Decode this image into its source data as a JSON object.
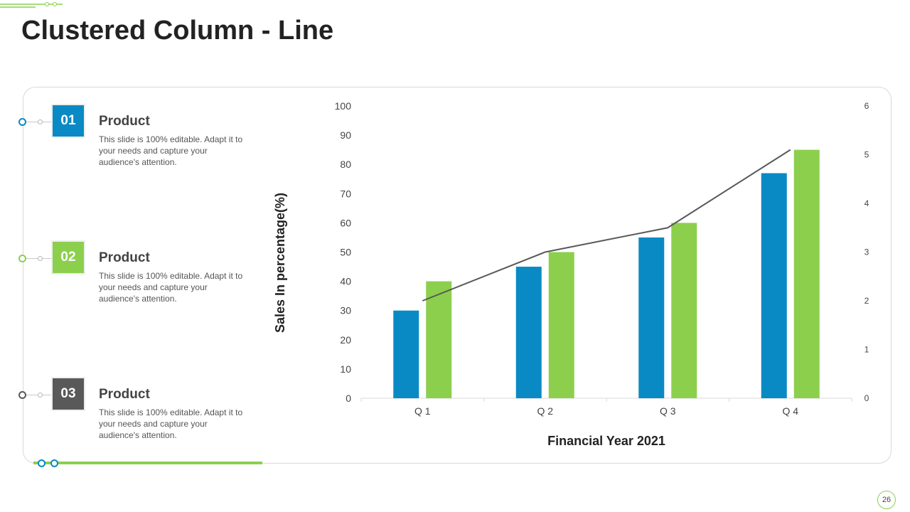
{
  "title": "Clustered Column - Line",
  "page_number": "26",
  "colors": {
    "blue": "#0a8ac4",
    "green": "#8ccf4d",
    "gray": "#595959",
    "line": "#595959"
  },
  "products": [
    {
      "number": "01",
      "heading": "Product",
      "description": "This slide is 100% editable. Adapt it to your needs and capture your audience's attention."
    },
    {
      "number": "02",
      "heading": "Product",
      "description": "This slide is 100% editable. Adapt it to your needs and capture your audience's attention."
    },
    {
      "number": "03",
      "heading": "Product",
      "description": "This slide is 100% editable. Adapt it to your needs and capture your audience's attention."
    }
  ],
  "chart_data": {
    "type": "bar",
    "categories": [
      "Q 1",
      "Q 2",
      "Q 3",
      "Q 4"
    ],
    "series": [
      {
        "values": [
          30,
          45,
          55,
          77
        ],
        "color": "#0a8ac4",
        "kind": "bar",
        "axis": "left"
      },
      {
        "values": [
          40,
          50,
          60,
          85
        ],
        "color": "#8ccf4d",
        "kind": "bar",
        "axis": "left"
      },
      {
        "values": [
          2,
          3,
          3.5,
          5.1
        ],
        "color": "#595959",
        "kind": "line",
        "axis": "right"
      }
    ],
    "xlabel": "Financial Year 2021",
    "ylabel": "Sales In percentage(%)",
    "ylim": [
      0,
      100
    ],
    "yticks": [
      0,
      10,
      20,
      30,
      40,
      50,
      60,
      70,
      80,
      90,
      100
    ],
    "y2lim": [
      0,
      6
    ],
    "y2ticks": [
      0,
      1,
      2,
      3,
      4,
      5,
      6
    ],
    "grid": false
  }
}
